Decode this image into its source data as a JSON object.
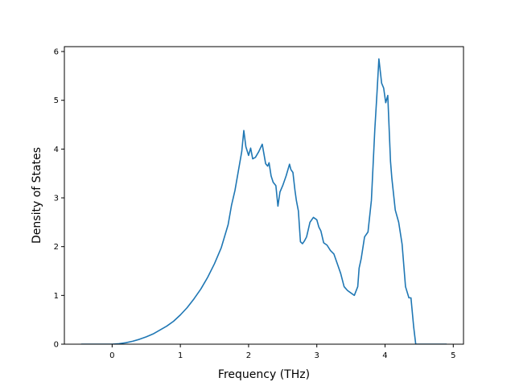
{
  "chart_data": {
    "type": "line",
    "title": "",
    "xlabel": "Frequency (THz)",
    "ylabel": "Density of States",
    "xlim": [
      -0.7,
      5.15
    ],
    "ylim": [
      0,
      6.1
    ],
    "xticks": [
      0,
      1,
      2,
      3,
      4,
      5
    ],
    "xtick_labels": [
      "0",
      "1",
      "2",
      "3",
      "4",
      "5"
    ],
    "yticks": [
      0,
      1,
      2,
      3,
      4,
      5,
      6
    ],
    "ytick_labels": [
      "0",
      "1",
      "2",
      "3",
      "4",
      "5",
      "6"
    ],
    "grid": false,
    "legend": "none",
    "series": [
      {
        "color": "#1f77b4",
        "x": [
          -0.45,
          0.0,
          0.1,
          0.2,
          0.3,
          0.4,
          0.5,
          0.6,
          0.7,
          0.8,
          0.9,
          1.0,
          1.1,
          1.2,
          1.3,
          1.4,
          1.5,
          1.6,
          1.7,
          1.75,
          1.8,
          1.85,
          1.9,
          1.93,
          1.96,
          2.0,
          2.03,
          2.06,
          2.1,
          2.15,
          2.2,
          2.25,
          2.28,
          2.3,
          2.33,
          2.36,
          2.4,
          2.43,
          2.46,
          2.5,
          2.55,
          2.6,
          2.62,
          2.65,
          2.68,
          2.7,
          2.73,
          2.76,
          2.79,
          2.82,
          2.85,
          2.9,
          2.95,
          3.0,
          3.03,
          3.06,
          3.1,
          3.15,
          3.2,
          3.25,
          3.3,
          3.35,
          3.4,
          3.45,
          3.5,
          3.55,
          3.6,
          3.62,
          3.65,
          3.7,
          3.75,
          3.8,
          3.85,
          3.88,
          3.91,
          3.93,
          3.95,
          3.98,
          4.01,
          4.04,
          4.08,
          4.1,
          4.15,
          4.2,
          4.25,
          4.3,
          4.35,
          4.38,
          4.42,
          4.45,
          4.47,
          4.5,
          4.9
        ],
        "y": [
          0,
          0,
          0.01,
          0.03,
          0.06,
          0.1,
          0.15,
          0.21,
          0.29,
          0.37,
          0.47,
          0.6,
          0.75,
          0.93,
          1.13,
          1.37,
          1.65,
          1.98,
          2.45,
          2.85,
          3.15,
          3.55,
          3.95,
          4.38,
          4.05,
          3.87,
          4.02,
          3.8,
          3.83,
          3.95,
          4.1,
          3.7,
          3.65,
          3.72,
          3.45,
          3.32,
          3.25,
          2.83,
          3.12,
          3.25,
          3.45,
          3.69,
          3.58,
          3.52,
          3.15,
          2.95,
          2.73,
          2.1,
          2.06,
          2.12,
          2.2,
          2.5,
          2.6,
          2.55,
          2.4,
          2.32,
          2.08,
          2.03,
          1.92,
          1.85,
          1.65,
          1.45,
          1.18,
          1.1,
          1.05,
          1.0,
          1.18,
          1.56,
          1.75,
          2.2,
          2.3,
          2.95,
          4.4,
          5.1,
          5.85,
          5.6,
          5.35,
          5.25,
          4.95,
          5.1,
          3.75,
          3.4,
          2.75,
          2.5,
          2.05,
          1.18,
          0.95,
          0.95,
          0.35,
          0,
          0,
          0,
          0
        ]
      }
    ]
  }
}
